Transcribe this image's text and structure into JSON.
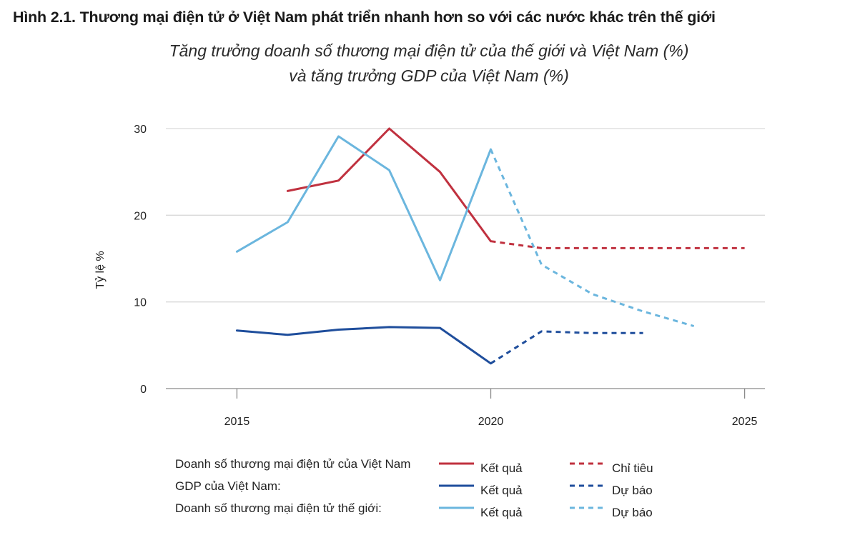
{
  "figure_title": "Hình 2.1. Thương mại điện tử  ở Việt Nam phát triển nhanh hơn so với các nước khác trên thế giới",
  "chart_data": {
    "type": "line",
    "title": "Tăng trưởng doanh số thương mại điện tử của thế giới và Việt Nam (%)",
    "subtitle": "và tăng trưởng GDP của Việt Nam (%)",
    "xlabel": "",
    "ylabel": "Tỷ lệ %",
    "xlim": [
      2013.6,
      2025.4
    ],
    "ylim": [
      0,
      30
    ],
    "x_ticks": [
      2015,
      2020,
      2025
    ],
    "y_ticks": [
      0,
      10,
      20,
      30
    ],
    "grid": true,
    "series": [
      {
        "name": "Doanh số thương mại điện tử của Việt Nam — Kết quả",
        "color": "#c0313f",
        "dashed": false,
        "x": [
          2016,
          2017,
          2018,
          2019,
          2020
        ],
        "values": [
          22.8,
          24.0,
          30.0,
          25.0,
          17.0
        ]
      },
      {
        "name": "Doanh số thương mại điện tử của Việt Nam — Chỉ tiêu",
        "color": "#c0313f",
        "dashed": true,
        "x": [
          2020,
          2021,
          2025
        ],
        "values": [
          17.0,
          16.2,
          16.2
        ]
      },
      {
        "name": "GDP của Việt Nam — Kết quả",
        "color": "#1f4e9c",
        "dashed": false,
        "x": [
          2015,
          2016,
          2017,
          2018,
          2019,
          2020
        ],
        "values": [
          6.7,
          6.2,
          6.8,
          7.1,
          7.0,
          2.9
        ]
      },
      {
        "name": "GDP của Việt Nam — Dự báo",
        "color": "#1f4e9c",
        "dashed": true,
        "x": [
          2020,
          2021,
          2022,
          2023
        ],
        "values": [
          2.9,
          6.6,
          6.4,
          6.4
        ]
      },
      {
        "name": "Doanh số thương mại điện tử thế giới — Kết quả",
        "color": "#6bb6de",
        "dashed": false,
        "x": [
          2015,
          2016,
          2017,
          2018,
          2019,
          2020
        ],
        "values": [
          15.8,
          19.2,
          29.1,
          25.2,
          12.5,
          27.6
        ]
      },
      {
        "name": "Doanh số thương mại điện tử thế giới — Dự báo",
        "color": "#6bb6de",
        "dashed": true,
        "x": [
          2020,
          2021,
          2022,
          2023,
          2024
        ],
        "values": [
          27.6,
          14.3,
          10.9,
          8.9,
          7.2
        ]
      }
    ]
  },
  "legend": {
    "rows": [
      {
        "label": "Doanh số thương mại điện tử của Việt Nam",
        "color": "#c0313f",
        "solid_label": "Kết quả",
        "dashed_label": "Chỉ tiêu"
      },
      {
        "label": "GDP của Việt Nam:",
        "color": "#1f4e9c",
        "solid_label": "Kết quả",
        "dashed_label": "Dự báo"
      },
      {
        "label": "Doanh số thương mại điện tử thế giới:",
        "color": "#6bb6de",
        "solid_label": "Kết quả",
        "dashed_label": "Dự báo"
      }
    ]
  }
}
